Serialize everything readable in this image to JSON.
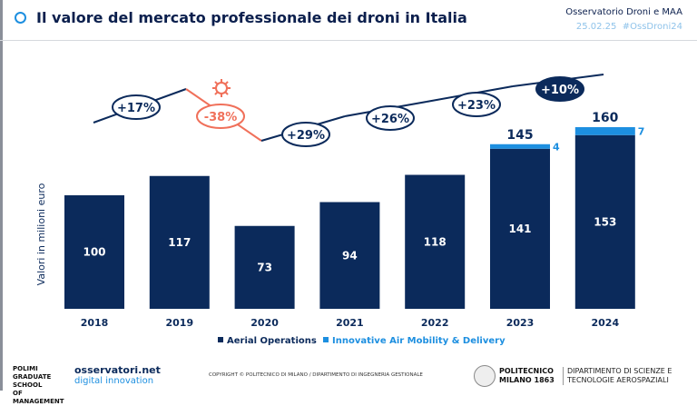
{
  "header": {
    "title": "Il valore del mercato professionale dei droni in Italia",
    "observatory": "Osservatorio Droni e MAA",
    "date": "25.02.25",
    "hashtag": "#OssDroni24"
  },
  "chart_data": {
    "type": "bar",
    "stacked": true,
    "categories": [
      "2018",
      "2019",
      "2020",
      "2021",
      "2022",
      "2023",
      "2024"
    ],
    "ylabel": "Valori in milioni euro",
    "ylim": [
      0,
      170
    ],
    "grid": false,
    "legend_position": "bottom",
    "series": [
      {
        "name": "Aerial Operations",
        "color": "#0b2a5b",
        "values": [
          100,
          117,
          73,
          94,
          118,
          141,
          153
        ]
      },
      {
        "name": "Innovative Air Mobility & Delivery",
        "color": "#1d8fe0",
        "values": [
          0,
          0,
          0,
          0,
          0,
          4,
          7
        ]
      }
    ],
    "totals": {
      "2023": "145",
      "2024": "160"
    },
    "growth_labels": [
      "+17%",
      "-38%",
      "+29%",
      "+26%",
      "+23%",
      "+10%"
    ],
    "growth_colors": {
      "default": "#0b2a5b",
      "negative": "#f0705a",
      "highlight": "#0b2a5b"
    }
  },
  "footer": {
    "logo_left": "POLIMI GRADUATE SCHOOL OF MANAGEMENT",
    "logo_osservatori": "osservatori.net",
    "logo_osservatori_sub": "digital innovation",
    "copyright": "COPYRIGHT © POLITECNICO DI MILANO / DIPARTIMENTO DI INGEGNERIA GESTIONALE",
    "polimi": "POLITECNICO MILANO 1863",
    "dept": "DIPARTIMENTO DI SCIENZE E TECNOLOGIE AEROSPAZIALI"
  }
}
